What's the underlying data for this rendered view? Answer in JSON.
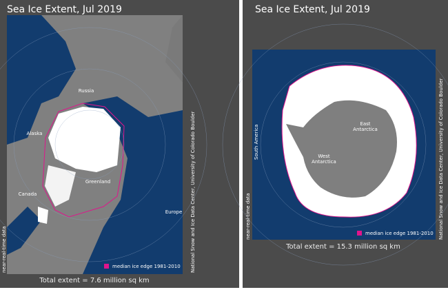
{
  "left": {
    "title": "Sea Ice Extent, Jul 2019",
    "labels": [
      "Russia",
      "Alaska",
      "Canada",
      "Greenland",
      "Europe"
    ],
    "legend": "median ice edge 1981-2010",
    "total": "Total extent = 7.6 million sq km",
    "credit": "National Snow and Ice Data Center, University of Colorado Boulder",
    "note": "near-real-time data"
  },
  "right": {
    "title": "Sea Ice Extent, Jul 2019",
    "labels": [
      "South America",
      "East",
      "Antarctica",
      "West",
      "Antarctica"
    ],
    "legend": "median ice edge 1981-2010",
    "total": "Total extent = 15.3 million sq km",
    "credit": "National Snow and Ice Data Center, University of Colorado Boulder",
    "note": "near-real-time data"
  }
}
